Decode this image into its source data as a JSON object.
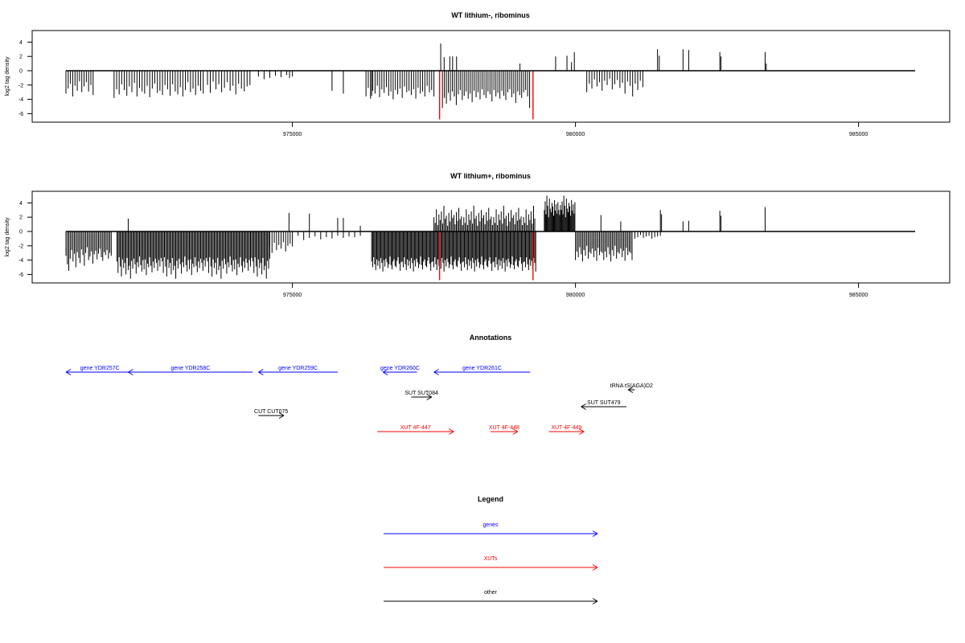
{
  "chart_data": [
    {
      "type": "bar",
      "title": "WT lithium-, ribominus",
      "xlabel": "",
      "ylabel": "log2 tag density",
      "xlim": [
        971000,
        986000
      ],
      "ylim": [
        -6.5,
        5.5
      ],
      "x_ticks": [
        "975000",
        "980000",
        "985000"
      ],
      "y_ticks": [
        "4",
        "2",
        "0",
        "-2",
        "-4",
        "-6"
      ],
      "series": [
        {
          "color": "#000000",
          "clusters": [
            {
              "from": 971000,
              "to": 971500,
              "step": 40,
              "values": [
                -3.2,
                -2.5,
                -1.8,
                -3.6,
                -2.1,
                -2.8,
                -1.5,
                -3.0,
                -2.2,
                -1.6,
                -2.9,
                -2.0,
                -3.4
              ]
            },
            {
              "from": 971850,
              "to": 973450,
              "step": 45,
              "values": [
                -3.8,
                -2.6,
                -3.3,
                -1.9,
                -2.7,
                -3.5,
                -2.2,
                -3.0,
                -1.7,
                -3.6,
                -2.4,
                -2.9,
                -3.2,
                -2.1,
                -3.7,
                -2.5,
                -1.8,
                -3.1,
                -2.8,
                -3.4,
                -2.0,
                -2.6,
                -3.5,
                -1.9,
                -2.9,
                -3.3,
                -2.3,
                -3.6,
                -2.7,
                -1.6,
                -3.0,
                -2.5,
                -3.4,
                -2.1,
                -2.8,
                -3.2
              ]
            },
            {
              "from": 973500,
              "to": 974250,
              "step": 50,
              "values": [
                -2.0,
                -3.1,
                -1.5,
                -2.6,
                -1.9,
                -3.0,
                -2.4,
                -1.6,
                -2.8,
                -2.1,
                -3.3,
                -1.8,
                -2.5,
                -2.9,
                -2.2
              ]
            },
            {
              "from": 974400,
              "to": 975000,
              "step": 100,
              "values": [
                -0.8,
                -1.2,
                -1.0,
                -0.7,
                -0.9,
                -0.6
              ]
            },
            {
              "from": 976300,
              "to": 977500,
              "step": 40,
              "values": [
                -3.6,
                -2.4,
                -3.9,
                -2.8,
                -3.2,
                -2.1,
                -3.7,
                -2.6,
                -3.1,
                -2.3,
                -3.5,
                -2.9,
                -4.0,
                -2.7,
                -3.3,
                -2.5,
                -3.8,
                -2.2,
                -3.0,
                -2.8,
                -3.4,
                -2.6,
                -3.9,
                -2.4,
                -3.2,
                -2.9,
                -3.6,
                -2.1,
                -3.0,
                -2.7
              ]
            },
            {
              "from": 977650,
              "to": 979200,
              "step": 35,
              "values": [
                -5.2,
                -3.8,
                -4.6,
                -3.1,
                -4.2,
                -2.9,
                -3.6,
                -4.8,
                -3.3,
                -2.7,
                -4.1,
                -3.5,
                -2.9,
                -3.9,
                -3.2,
                -4.4,
                -2.8,
                -3.7,
                -3.0,
                -4.0,
                -2.6,
                -3.4,
                -3.8,
                -2.9,
                -3.3,
                -4.3,
                -2.7,
                -3.6,
                -3.1,
                -3.9,
                -2.8,
                -3.5,
                -4.1,
                -3.0,
                -2.6,
                -3.7,
                -3.2,
                -4.5,
                -2.9,
                -3.4,
                -3.8,
                -3.0,
                -2.7,
                -3.6
              ]
            },
            {
              "from": 980200,
              "to": 981200,
              "step": 45,
              "values": [
                -3.0,
                -1.8,
                -2.5,
                -1.2,
                -2.2,
                -1.6,
                -2.8,
                -1.4,
                -2.0,
                -1.1,
                -2.6,
                -1.9,
                -1.3,
                -2.4,
                -1.7,
                -3.2,
                -1.5,
                -2.1,
                -3.6,
                -1.8,
                -2.7,
                -1.4,
                -2.3
              ]
            }
          ],
          "spikes": [
            [
              972300,
              0
            ],
            [
              974950,
              -1.0
            ],
            [
              975700,
              -2.8
            ],
            [
              975900,
              -3.2
            ],
            [
              976400,
              -3.5
            ],
            [
              981100,
              -2.0
            ],
            [
              977620,
              3.8
            ],
            [
              977680,
              1.9
            ],
            [
              977780,
              2.0
            ],
            [
              977830,
              2.0
            ],
            [
              977900,
              2.0
            ],
            [
              979020,
              1.0
            ],
            [
              979650,
              2.0
            ],
            [
              979850,
              2.1
            ],
            [
              979930,
              1.2
            ],
            [
              979980,
              2.6
            ],
            [
              981450,
              3.0
            ],
            [
              981480,
              2.1
            ],
            [
              981900,
              3.0
            ],
            [
              982000,
              2.9
            ],
            [
              982550,
              2.6
            ],
            [
              982570,
              2.0
            ],
            [
              983350,
              2.6
            ],
            [
              983370,
              1.0
            ]
          ]
        },
        {
          "color": "#ff0000",
          "spikes": [
            [
              977600,
              -6.8
            ],
            [
              979250,
              -6.8
            ]
          ]
        }
      ]
    },
    {
      "type": "bar",
      "title": "WT lithium+, ribominus",
      "xlabel": "",
      "ylabel": "log2 tag density",
      "xlim": [
        971000,
        986000
      ],
      "ylim": [
        -6.5,
        5.5
      ],
      "x_ticks": [
        "975000",
        "980000",
        "985000"
      ],
      "y_ticks": [
        "4",
        "2",
        "0",
        "-2",
        "-4",
        "-6"
      ],
      "series": [
        {
          "color": "#000000",
          "clusters": [
            {
              "from": 971000,
              "to": 971800,
              "step": 25,
              "values": [
                -3.4,
                -4.6,
                -5.5,
                -3.8,
                -2.6,
                -4.2,
                -3.1,
                -5.0,
                -2.9,
                -3.7,
                -4.4,
                -2.5,
                -3.3,
                -4.8,
                -3.0,
                -2.2,
                -4.0,
                -3.5,
                -2.8,
                -4.5,
                -3.2,
                -2.7,
                -3.9,
                -3.1,
                -2.4,
                -3.6,
                -4.1,
                -2.9,
                -3.3,
                -2.6,
                -3.8,
                -3.0
              ]
            },
            {
              "from": 971900,
              "to": 974600,
              "step": 20,
              "values": [
                -4.2,
                -5.8,
                -3.6,
                -4.9,
                -6.3,
                -3.9,
                -5.1,
                -4.4,
                -6.0,
                -3.7,
                -5.4,
                -4.8,
                -6.6,
                -4.1,
                -5.2,
                -3.8,
                -4.6,
                -5.9,
                -4.3,
                -5.0,
                -3.5,
                -4.7,
                -5.6,
                -4.0,
                -5.3,
                -3.9,
                -6.1,
                -4.5,
                -5.0,
                -3.6,
                -4.8,
                -5.7,
                -4.2,
                -5.1,
                -3.8,
                -4.4,
                -5.5,
                -4.0,
                -4.9,
                -3.7
              ]
            },
            {
              "from": 974600,
              "to": 975000,
              "step": 40,
              "values": [
                -2.1,
                -3.0,
                -1.6,
                -2.6,
                -1.9,
                -2.4,
                -1.5,
                -2.8,
                -2.0,
                -1.7
              ]
            },
            {
              "from": 975100,
              "to": 976200,
              "step": 100,
              "values": [
                -0.6,
                -1.2,
                -0.9,
                -0.7,
                -1.1,
                -0.8,
                -1.0,
                -0.6,
                -0.9,
                -0.7,
                -0.8
              ]
            },
            {
              "from": 976400,
              "to": 979300,
              "step": 18,
              "values": [
                -4.2,
                -5.0,
                -3.6,
                -4.6,
                -5.4,
                -3.9,
                -4.8,
                -4.1,
                -5.2,
                -3.7,
                -4.4,
                -5.6,
                -4.0,
                -4.9,
                -3.8,
                -4.3,
                -5.1,
                -4.6,
                -3.5,
                -4.7,
                -5.3,
                -4.2,
                -3.9,
                -4.8,
                -5.0,
                -4.1,
                -3.6,
                -4.5,
                -5.5,
                -4.3
              ]
            },
            {
              "from": 977500,
              "to": 979300,
              "step": 22,
              "values": [
                2.0,
                1.2,
                3.1,
                0.9,
                2.4,
                1.6,
                2.8,
                1.1,
                3.6,
                1.8,
                2.2,
                0.8,
                2.6,
                1.4,
                3.0,
                1.9,
                2.3,
                1.0,
                2.7,
                1.5,
                3.3,
                1.7,
                2.1,
                0.9
              ]
            },
            {
              "from": 979450,
              "to": 980000,
              "step": 15,
              "values": [
                3.0,
                4.2,
                2.4,
                5.0,
                3.6,
                2.0,
                4.6,
                3.2,
                2.7,
                4.0,
                3.5,
                2.2,
                4.4,
                2.9,
                3.8,
                2.5,
                4.1,
                3.0,
                2.3,
                3.7
              ]
            },
            {
              "from": 980000,
              "to": 981000,
              "step": 25,
              "values": [
                -4.0,
                -2.8,
                -3.6,
                -2.2,
                -3.2,
                -4.2,
                -2.6,
                -3.4,
                -2.0,
                -3.8,
                -2.9,
                -3.1,
                -2.4,
                -3.6,
                -2.7,
                -4.1,
                -2.3,
                -3.3,
                -2.8,
                -3.0
              ]
            },
            {
              "from": 981000,
              "to": 981500,
              "step": 50,
              "values": [
                -0.6,
                -1.0,
                -0.8,
                -0.5,
                -0.9,
                -0.7,
                -0.6,
                -1.0,
                -0.8,
                -0.7
              ]
            }
          ],
          "spikes": [
            [
              972100,
              1.8
            ],
            [
              974940,
              2.6
            ],
            [
              975300,
              2.5
            ],
            [
              975800,
              1.9
            ],
            [
              975900,
              1.9
            ],
            [
              976200,
              0.8
            ],
            [
              981500,
              3.0
            ],
            [
              981520,
              2.4
            ],
            [
              981900,
              1.4
            ],
            [
              982000,
              1.5
            ],
            [
              982550,
              2.9
            ],
            [
              982570,
              2.2
            ],
            [
              983350,
              3.4
            ],
            [
              980450,
              2.3
            ],
            [
              980800,
              1.4
            ]
          ]
        },
        {
          "color": "#ff0000",
          "spikes": [
            [
              977600,
              -6.8
            ],
            [
              979250,
              -6.8
            ]
          ]
        }
      ]
    }
  ],
  "annotations": {
    "title": "Annotations",
    "features": [
      {
        "label": "gene YDR257C",
        "category": "genes",
        "from": 971000,
        "to": 972200,
        "strand": "-"
      },
      {
        "label": "gene YDR258C",
        "category": "genes",
        "from": 972100,
        "to": 974300,
        "strand": "-"
      },
      {
        "label": "gene YDR259C",
        "category": "genes",
        "from": 974400,
        "to": 975800,
        "strand": "-"
      },
      {
        "label": "gene YDR260C",
        "category": "genes",
        "from": 976600,
        "to": 977200,
        "strand": "-"
      },
      {
        "label": "gene YDR261C",
        "category": "genes",
        "from": 977500,
        "to": 979200,
        "strand": "-"
      },
      {
        "label": "SUT SUT084",
        "category": "other",
        "from": 977100,
        "to": 977460,
        "strand": "+"
      },
      {
        "label": "tRNA tS(AGA)D2",
        "category": "other",
        "from": 980930,
        "to": 981050,
        "strand": "-"
      },
      {
        "label": "SUT SUT479",
        "category": "other",
        "from": 980100,
        "to": 980900,
        "strand": "-"
      },
      {
        "label": "CUT CUT075",
        "category": "other",
        "from": 974400,
        "to": 974850,
        "strand": "+"
      },
      {
        "label": "XUT 4F-447",
        "category": "XUTs",
        "from": 976500,
        "to": 977850,
        "strand": "+"
      },
      {
        "label": "XUT 4F-448",
        "category": "XUTs",
        "from": 978500,
        "to": 978980,
        "strand": "+"
      },
      {
        "label": "XUT 4F-449",
        "category": "XUTs",
        "from": 979530,
        "to": 980150,
        "strand": "+"
      }
    ]
  },
  "legend": {
    "title": "Legend",
    "items": [
      {
        "label": "genes",
        "color": "#0000ff"
      },
      {
        "label": "XUTs",
        "color": "#ff0000"
      },
      {
        "label": "other",
        "color": "#000000"
      }
    ]
  },
  "colors": {
    "genes": "#0000ff",
    "XUTs": "#ff0000",
    "other": "#000000"
  }
}
